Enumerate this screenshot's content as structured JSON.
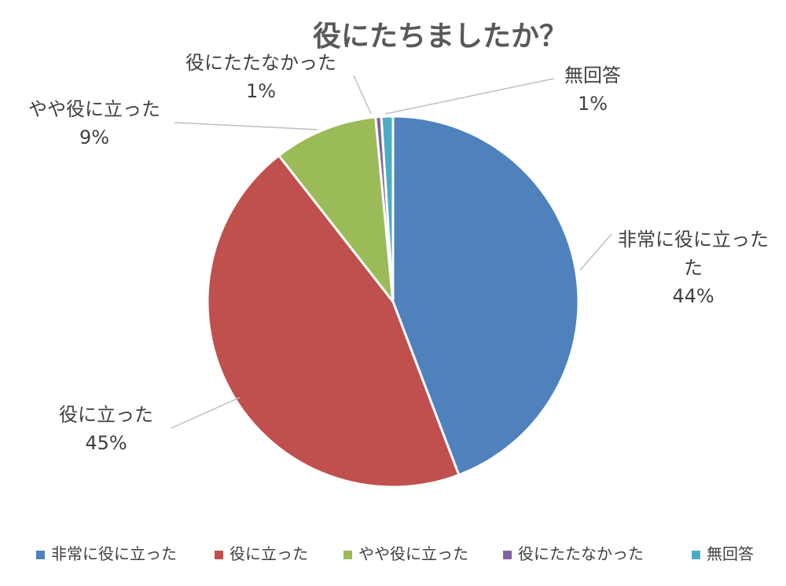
{
  "chart_data": {
    "type": "pie",
    "title": "役にたちましたか？",
    "slices": [
      {
        "name": "非常に役に立った",
        "label_lines": [
          "非常に役に立った",
          "た"
        ],
        "value": 44,
        "value_label": "44%",
        "color": "#4F81BD"
      },
      {
        "name": "役に立った",
        "label_lines": [
          "役に立った"
        ],
        "value": 45,
        "value_label": "45%",
        "color": "#C0504D"
      },
      {
        "name": "やや役に立った",
        "label_lines": [
          "やや役に立った"
        ],
        "value": 9,
        "value_label": "9%",
        "color": "#9BBB59"
      },
      {
        "name": "役にたたなかった",
        "label_lines": [
          "役にたたなかった"
        ],
        "value": 0.5,
        "value_label": "1%",
        "color": "#8064A2"
      },
      {
        "name": "無回答",
        "label_lines": [
          "無回答"
        ],
        "value": 1,
        "value_label": "1%",
        "color": "#4BACC6"
      }
    ],
    "legend": {
      "placement": "bottom"
    }
  }
}
